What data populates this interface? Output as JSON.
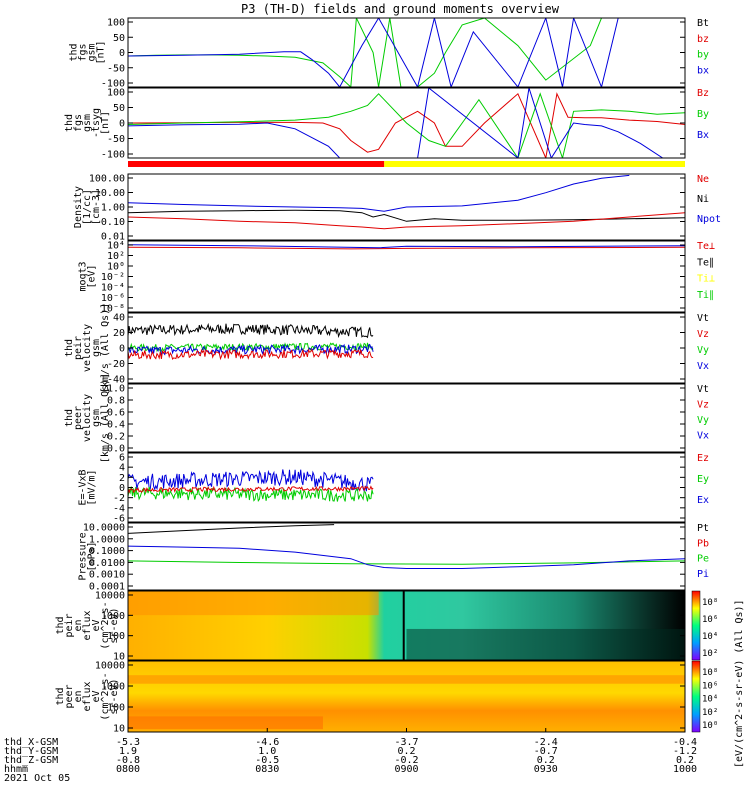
{
  "title": "P3 (TH-D) fields and ground moments overview",
  "colors": {
    "black": "#000000",
    "red": "#e00000",
    "green": "#00cc00",
    "blue": "#0000dd",
    "yellow": "#ffff00",
    "barRed": "#ff0000"
  },
  "chart_data": [
    {
      "type": "line",
      "panel": "fgs_gsm",
      "ylabel": [
        "thd",
        "fgs",
        "gsm",
        "[nT]"
      ],
      "yticks": [
        "100",
        "50",
        "0",
        "-50",
        "-100"
      ],
      "ylim": [
        -100,
        100
      ],
      "legend": [
        {
          "name": "Bt",
          "color": "black"
        },
        {
          "name": "bz",
          "color": "red"
        },
        {
          "name": "by",
          "color": "green"
        },
        {
          "name": "bx",
          "color": "blue"
        }
      ],
      "series": [
        {
          "name": "by",
          "color": "green",
          "x": [
            0.0,
            0.05,
            0.1,
            0.15,
            0.2,
            0.25,
            0.3,
            0.35,
            0.38,
            0.4,
            0.41,
            0.44,
            0.45,
            0.47,
            0.49,
            0.52,
            0.55,
            0.57,
            0.6,
            0.64,
            0.7,
            0.75,
            0.83,
            0.85
          ],
          "y": [
            -10,
            -8,
            -7,
            -7,
            -8,
            -10,
            -14,
            -30,
            -70,
            -100,
            100,
            0,
            -100,
            100,
            -100,
            -100,
            -60,
            0,
            80,
            100,
            20,
            -80,
            20,
            100
          ]
        },
        {
          "name": "bx",
          "color": "blue",
          "x": [
            0.0,
            0.1,
            0.2,
            0.28,
            0.31,
            0.33,
            0.36,
            0.38,
            0.42,
            0.45,
            0.52,
            0.55,
            0.58,
            0.62,
            0.7,
            0.75,
            0.78,
            0.8,
            0.85,
            0.88
          ],
          "y": [
            -10,
            -8,
            -5,
            2,
            2,
            -20,
            -60,
            -100,
            20,
            100,
            -100,
            100,
            -100,
            60,
            -100,
            100,
            -100,
            100,
            -100,
            100
          ]
        }
      ]
    },
    {
      "type": "line",
      "panel": "fgs_gse",
      "ylabel": [
        "thd",
        "fgs",
        "gsm",
        "-tsyg",
        "[nT]"
      ],
      "yticks": [
        "100",
        "50",
        "0",
        "-50",
        "-100"
      ],
      "ylim": [
        -120,
        120
      ],
      "legend": [
        {
          "name": "Bz",
          "color": "red"
        },
        {
          "name": "By",
          "color": "green"
        },
        {
          "name": "Bx",
          "color": "blue"
        }
      ],
      "series": [
        {
          "name": "Bz",
          "color": "red",
          "x": [
            0.0,
            0.1,
            0.2,
            0.3,
            0.35,
            0.38,
            0.4,
            0.43,
            0.45,
            0.48,
            0.52,
            0.55,
            0.57,
            0.6,
            0.64,
            0.7,
            0.75,
            0.77,
            0.79,
            0.82,
            0.85,
            0.9,
            0.95,
            1.0
          ],
          "y": [
            0,
            1,
            2,
            2,
            0,
            -20,
            -60,
            -100,
            -90,
            0,
            40,
            0,
            -80,
            -80,
            0,
            100,
            -120,
            100,
            20,
            18,
            18,
            10,
            5,
            -5
          ]
        },
        {
          "name": "By",
          "color": "green",
          "x": [
            0.0,
            0.1,
            0.2,
            0.3,
            0.36,
            0.4,
            0.43,
            0.45,
            0.5,
            0.54,
            0.57,
            0.6,
            0.63,
            0.7,
            0.74,
            0.78,
            0.8,
            0.85,
            0.9,
            0.95,
            1.0
          ],
          "y": [
            -5,
            0,
            4,
            10,
            20,
            40,
            60,
            100,
            0,
            -60,
            -80,
            0,
            80,
            -120,
            100,
            -120,
            40,
            45,
            40,
            30,
            35
          ]
        },
        {
          "name": "Bx",
          "color": "blue",
          "x": [
            0.0,
            0.1,
            0.2,
            0.25,
            0.3,
            0.36,
            0.38,
            0.4,
            0.52,
            0.54,
            0.7,
            0.72,
            0.76,
            0.8,
            0.82,
            0.85,
            0.88,
            0.92,
            0.96
          ],
          "y": [
            -10,
            -6,
            -4,
            0,
            -20,
            -80,
            -120,
            -120,
            -120,
            120,
            -120,
            120,
            -120,
            0,
            -5,
            -10,
            -30,
            -70,
            -120
          ]
        }
      ]
    },
    {
      "type": "line",
      "panel": "density",
      "ylabel": [
        "Density",
        "[1/cc]",
        "[cm-3]"
      ],
      "yticks": [
        "100.00",
        "10.00",
        "1.00",
        "0.10",
        "0.01"
      ],
      "ylim": [
        0.005,
        200
      ],
      "yscale": "log",
      "legend": [
        {
          "name": "Ne",
          "color": "red"
        },
        {
          "name": "Ni",
          "color": "black"
        },
        {
          "name": "Npot",
          "color": "blue"
        }
      ],
      "series": [
        {
          "name": "Ni",
          "color": "black",
          "x": [
            0.0,
            0.1,
            0.2,
            0.3,
            0.38,
            0.42,
            0.44,
            0.46,
            0.5,
            0.55,
            0.6,
            0.7,
            0.8,
            0.9,
            1.0
          ],
          "y": [
            0.4,
            0.5,
            0.55,
            0.6,
            0.55,
            0.4,
            0.2,
            0.3,
            0.1,
            0.15,
            0.12,
            0.12,
            0.13,
            0.15,
            0.18
          ]
        },
        {
          "name": "Ne",
          "color": "red",
          "x": [
            0.0,
            0.1,
            0.2,
            0.3,
            0.38,
            0.42,
            0.46,
            0.5,
            0.6,
            0.7,
            0.8,
            0.9,
            1.0
          ],
          "y": [
            0.2,
            0.15,
            0.1,
            0.08,
            0.05,
            0.04,
            0.03,
            0.04,
            0.05,
            0.07,
            0.1,
            0.2,
            0.4
          ]
        },
        {
          "name": "Npot",
          "color": "blue",
          "x": [
            0.0,
            0.1,
            0.2,
            0.3,
            0.38,
            0.42,
            0.46,
            0.5,
            0.6,
            0.7,
            0.75,
            0.8,
            0.85,
            0.9
          ],
          "y": [
            2,
            1.5,
            1.2,
            1.0,
            0.9,
            0.8,
            0.5,
            1.0,
            1.2,
            3,
            10,
            40,
            100,
            160
          ]
        }
      ]
    },
    {
      "type": "line",
      "panel": "temperature",
      "ylabel": [
        "moqt3",
        "[eV]"
      ],
      "yticks": [
        "10⁴",
        "10²",
        "10⁰",
        "10⁻²",
        "10⁻⁴",
        "10⁻⁶",
        "10⁻⁸"
      ],
      "ylim": [
        -9,
        4.5
      ],
      "yscale": "log",
      "legend": [
        {
          "name": "Te⊥",
          "color": "red"
        },
        {
          "name": "Te∥",
          "color": "black"
        },
        {
          "name": "Ti⊥",
          "color": "yellow"
        },
        {
          "name": "Ti∥",
          "color": "green"
        }
      ],
      "series": [
        {
          "name": "Te",
          "color": "red",
          "x": [
            0,
            0.2,
            0.4,
            0.5,
            0.7,
            1.0
          ],
          "y": [
            3.3,
            3.2,
            3.0,
            3.1,
            3.2,
            3.3
          ]
        },
        {
          "name": "Ti",
          "color": "blue",
          "x": [
            0,
            0.2,
            0.45,
            0.5,
            0.7,
            1.0
          ],
          "y": [
            3.8,
            3.6,
            3.2,
            3.5,
            3.4,
            3.6
          ]
        }
      ]
    },
    {
      "type": "line",
      "panel": "peir_velocity",
      "ylabel": [
        "thd",
        "peir",
        "velocity",
        "gsm",
        "[km/s (All Qs)]"
      ],
      "yticks": [
        "40",
        "20",
        "0",
        "-20",
        "-40"
      ],
      "ylim": [
        -40,
        40
      ],
      "legend": [
        {
          "name": "Vt",
          "color": "black"
        },
        {
          "name": "Vz",
          "color": "red"
        },
        {
          "name": "Vy",
          "color": "green"
        },
        {
          "name": "Vx",
          "color": "blue"
        }
      ],
      "series": [
        {
          "name": "Vt",
          "color": "black",
          "x": [
            0,
            0.2,
            0.44
          ],
          "y": [
            20,
            22,
            18
          ],
          "noise": 6
        },
        {
          "name": "Vy",
          "color": "green",
          "x": [
            0,
            0.2,
            0.44
          ],
          "y": [
            0,
            1,
            2
          ],
          "noise": 4
        },
        {
          "name": "Vx",
          "color": "blue",
          "x": [
            0,
            0.2,
            0.44
          ],
          "y": [
            -3,
            -2,
            -1
          ],
          "noise": 5
        },
        {
          "name": "Vz",
          "color": "red",
          "x": [
            0,
            0.2,
            0.44
          ],
          "y": [
            -8,
            -7,
            -6
          ],
          "noise": 5
        }
      ]
    },
    {
      "type": "line",
      "panel": "peer_velocity",
      "ylabel": [
        "thd",
        "peer",
        "velocity",
        "gsm",
        "[km/s (All Qs)]"
      ],
      "yticks": [
        "1.0",
        "0.8",
        "0.6",
        "0.4",
        "0.2",
        "0.0"
      ],
      "ylim": [
        0,
        1
      ],
      "legend": [
        {
          "name": "Vt",
          "color": "black"
        },
        {
          "name": "Vz",
          "color": "red"
        },
        {
          "name": "Vy",
          "color": "green"
        },
        {
          "name": "Vx",
          "color": "blue"
        }
      ],
      "series": []
    },
    {
      "type": "line",
      "panel": "efield",
      "ylabel": [
        "E=-VxB",
        "[mV/m]"
      ],
      "yticks": [
        "6",
        "4",
        "2",
        "0",
        "-2",
        "-4",
        "-6"
      ],
      "ylim": [
        -6,
        7
      ],
      "legend": [
        {
          "name": "Ez",
          "color": "red"
        },
        {
          "name": "Ey",
          "color": "green"
        },
        {
          "name": "Ex",
          "color": "blue"
        }
      ],
      "series": [
        {
          "name": "Ex",
          "color": "blue",
          "x": [
            0,
            0.15,
            0.3,
            0.44
          ],
          "y": [
            1.5,
            2,
            2.5,
            1
          ],
          "noise": 1.5
        },
        {
          "name": "Ey",
          "color": "green",
          "x": [
            0,
            0.2,
            0.44
          ],
          "y": [
            -0.5,
            -0.8,
            -1
          ],
          "noise": 1.2
        },
        {
          "name": "Ez",
          "color": "red",
          "x": [
            0,
            0.2,
            0.44
          ],
          "y": [
            0,
            0.2,
            0.3
          ],
          "noise": 0.4
        }
      ]
    },
    {
      "type": "line",
      "panel": "pressure",
      "ylabel": [
        "Pressure",
        "[nPa]"
      ],
      "yticks": [
        "10.0000",
        "1.0000",
        "0.1000",
        "0.0100",
        "0.0010",
        "0.0001"
      ],
      "ylim": [
        0.0001,
        20
      ],
      "yscale": "log",
      "legend": [
        {
          "name": "Pt",
          "color": "black"
        },
        {
          "name": "Pb",
          "color": "red"
        },
        {
          "name": "Pe",
          "color": "green"
        },
        {
          "name": "Pi",
          "color": "blue"
        }
      ],
      "series": [
        {
          "name": "Pt",
          "color": "black",
          "x": [
            0,
            0.1,
            0.2,
            0.3,
            0.37
          ],
          "y": [
            3,
            5,
            8,
            12,
            15
          ]
        },
        {
          "name": "Pe",
          "color": "green",
          "x": [
            0,
            0.2,
            0.4,
            0.6,
            0.8,
            1.0
          ],
          "y": [
            0.02,
            0.015,
            0.012,
            0.011,
            0.014,
            0.02
          ]
        },
        {
          "name": "Pi",
          "color": "blue",
          "x": [
            0,
            0.1,
            0.2,
            0.3,
            0.4,
            0.43,
            0.46,
            0.5,
            0.6,
            0.7,
            0.8,
            0.9,
            1.0
          ],
          "y": [
            0.3,
            0.25,
            0.2,
            0.1,
            0.03,
            0.01,
            0.006,
            0.005,
            0.005,
            0.007,
            0.01,
            0.02,
            0.03
          ]
        }
      ]
    },
    {
      "type": "heatmap",
      "panel": "peir_spectrogram",
      "ylabel": [
        "thd",
        "peir",
        "en",
        "eflux",
        "eV",
        "(cm^2-s-",
        "sr-eV)"
      ],
      "yticks": [
        "10000",
        "1000",
        "100",
        "10"
      ],
      "ylim": [
        5,
        20000
      ],
      "yscale": "log",
      "colorbar": {
        "label": "[eV/(cm^2-s-sr-eV)]",
        "ticks": [
          "10⁸",
          "10⁶",
          "10⁴",
          "10²"
        ]
      }
    },
    {
      "type": "heatmap",
      "panel": "peer_spectrogram",
      "ylabel": [
        "thd",
        "peer",
        "en",
        "eflux",
        "eV",
        "(cm^2-s-",
        "sr-eV)"
      ],
      "yticks": [
        "10000",
        "1000",
        "100",
        "10"
      ],
      "ylim": [
        5,
        20000
      ],
      "yscale": "log",
      "colorbar": {
        "label": "[eV/(cm^2-s-sr-eV) (All Qs)]",
        "ticks": [
          "10⁸",
          "10⁶",
          "10⁴",
          "10²",
          "10⁰"
        ]
      }
    }
  ],
  "mode_bar": {
    "segments": [
      {
        "from": 0.0,
        "to": 0.46,
        "color": "barRed"
      },
      {
        "from": 0.46,
        "to": 1.0,
        "color": "yellow"
      }
    ]
  },
  "xaxis": {
    "rows": [
      {
        "label": "thd_X-GSM",
        "values": [
          "-5.3",
          "-4.6",
          "-3.7",
          "-2.4",
          "-0.4"
        ]
      },
      {
        "label": "thd_Y-GSM",
        "values": [
          "1.9",
          "1.0",
          "0.2",
          "-0.7",
          "-1.2"
        ]
      },
      {
        "label": "thd_Z-GSM",
        "values": [
          "-0.8",
          "-0.5",
          "-0.2",
          "0.2",
          "0.2"
        ]
      },
      {
        "label": "hhmm",
        "values": [
          "0800",
          "0830",
          "0900",
          "0930",
          "1000"
        ]
      }
    ],
    "date": "2021 Oct 05"
  }
}
